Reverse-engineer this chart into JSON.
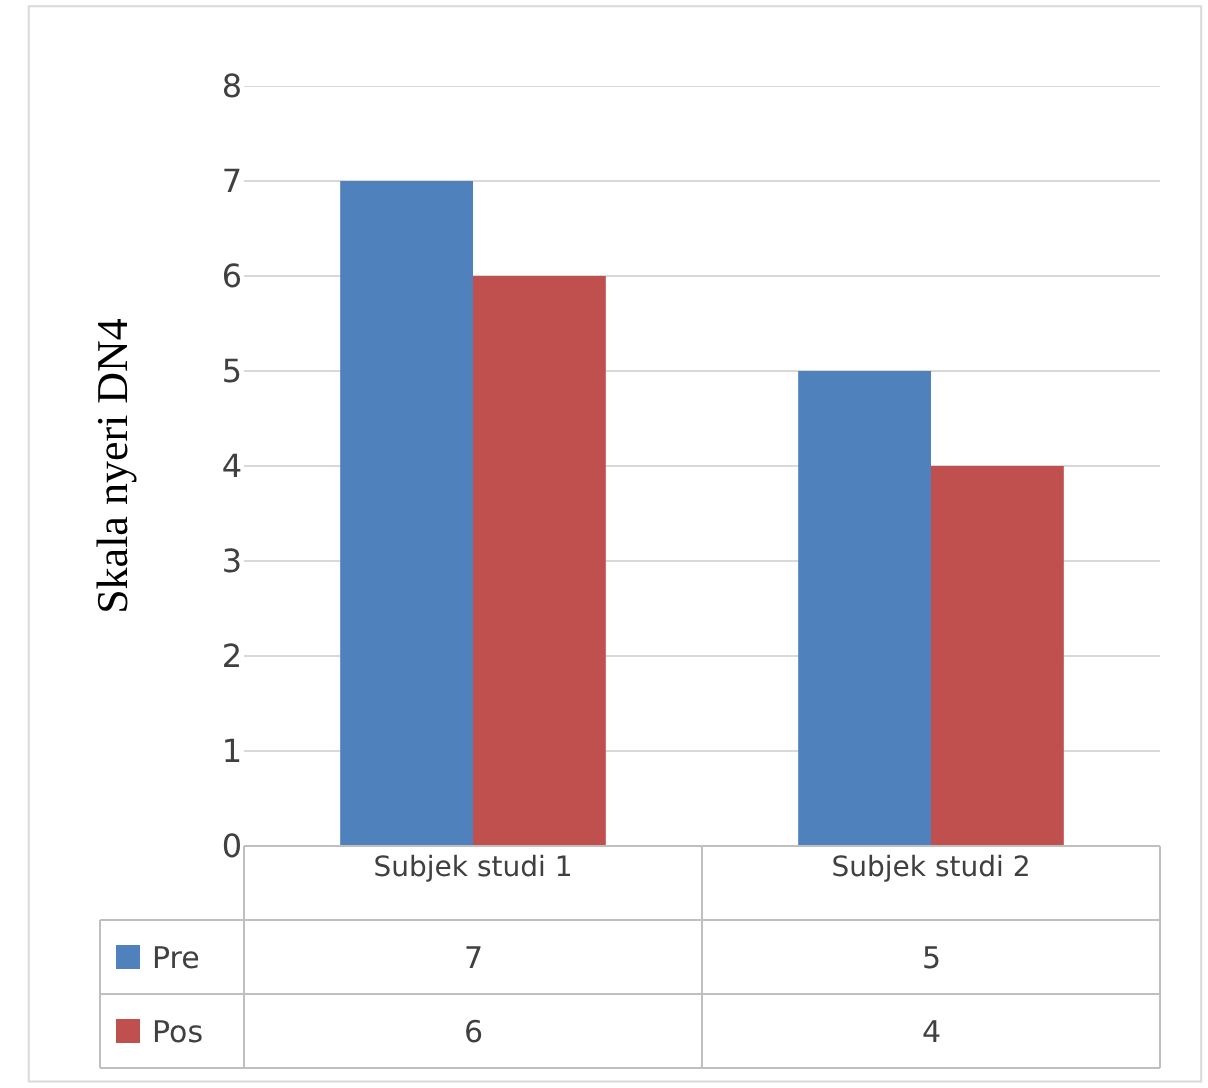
{
  "chart_data": {
    "type": "bar",
    "ylabel": "Skala nyeri DN4",
    "categories": [
      "Subjek studi 1",
      "Subjek studi 2"
    ],
    "series": [
      {
        "name": "Pre",
        "color": "#4f81bd",
        "values": [
          7,
          5
        ]
      },
      {
        "name": "Pos",
        "color": "#c0504d",
        "values": [
          6,
          4
        ]
      }
    ],
    "ylim": [
      0,
      8
    ],
    "yticks": [
      0,
      1,
      2,
      3,
      4,
      5,
      6,
      7,
      8
    ],
    "grid": "y",
    "data_labels": true,
    "legend": "bottom left"
  }
}
